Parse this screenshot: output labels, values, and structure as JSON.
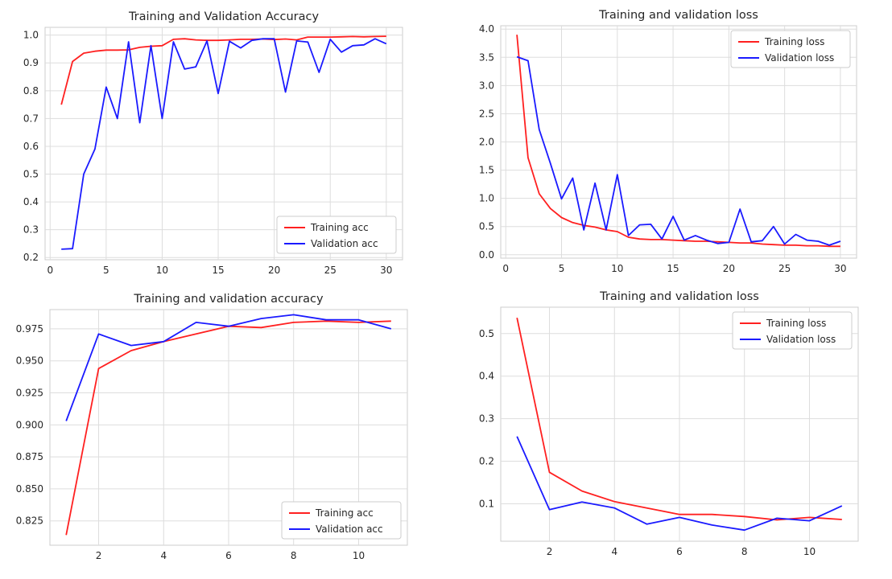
{
  "chart_data": [
    {
      "type": "line",
      "title": "Training and Validation Accuracy",
      "xlabel": "",
      "ylabel": "",
      "xlim": [
        -0.45,
        31.45
      ],
      "ylim": [
        0.192,
        1.028
      ],
      "xticks": [
        0,
        5,
        10,
        15,
        20,
        25,
        30
      ],
      "yticks": [
        0.2,
        0.3,
        0.4,
        0.5,
        0.6,
        0.7,
        0.8,
        0.9,
        1.0
      ],
      "ytick_labels": [
        "0.2",
        "0.3",
        "0.4",
        "0.5",
        "0.6",
        "0.7",
        "0.8",
        "0.9",
        "1.0"
      ],
      "grid": true,
      "legend_position": "lower-right",
      "x": [
        1,
        2,
        3,
        4,
        5,
        6,
        7,
        8,
        9,
        10,
        11,
        12,
        13,
        14,
        15,
        16,
        17,
        18,
        19,
        20,
        21,
        22,
        23,
        24,
        25,
        26,
        27,
        28,
        29,
        30
      ],
      "series": [
        {
          "name": "Training acc",
          "color": "#ff2020",
          "values": [
            0.75,
            0.905,
            0.935,
            0.942,
            0.946,
            0.946,
            0.947,
            0.956,
            0.96,
            0.962,
            0.985,
            0.987,
            0.983,
            0.981,
            0.981,
            0.983,
            0.985,
            0.985,
            0.986,
            0.984,
            0.986,
            0.983,
            0.993,
            0.993,
            0.993,
            0.994,
            0.995,
            0.994,
            0.995,
            0.996
          ]
        },
        {
          "name": "Validation acc",
          "color": "#1a1aff",
          "values": [
            0.23,
            0.232,
            0.5,
            0.59,
            0.813,
            0.7,
            0.976,
            0.685,
            0.962,
            0.7,
            0.976,
            0.878,
            0.886,
            0.979,
            0.79,
            0.978,
            0.954,
            0.981,
            0.987,
            0.987,
            0.795,
            0.979,
            0.975,
            0.866,
            0.985,
            0.939,
            0.962,
            0.965,
            0.987,
            0.969
          ]
        }
      ]
    },
    {
      "type": "line",
      "title": "Training and validation loss",
      "xlabel": "",
      "ylabel": "",
      "xlim": [
        -0.45,
        31.45
      ],
      "ylim": [
        -0.06,
        4.06
      ],
      "xticks": [
        0,
        5,
        10,
        15,
        20,
        25,
        30
      ],
      "yticks": [
        0.0,
        0.5,
        1.0,
        1.5,
        2.0,
        2.5,
        3.0,
        3.5,
        4.0
      ],
      "ytick_labels": [
        "0.0",
        "0.5",
        "1.0",
        "1.5",
        "2.0",
        "2.5",
        "3.0",
        "3.5",
        "4.0"
      ],
      "grid": true,
      "legend_position": "upper-right",
      "x": [
        1,
        2,
        3,
        4,
        5,
        6,
        7,
        8,
        9,
        10,
        11,
        12,
        13,
        14,
        15,
        16,
        17,
        18,
        19,
        20,
        21,
        22,
        23,
        24,
        25,
        26,
        27,
        28,
        29,
        30
      ],
      "series": [
        {
          "name": "Training loss",
          "color": "#ff2020",
          "values": [
            3.9,
            1.72,
            1.08,
            0.82,
            0.66,
            0.57,
            0.52,
            0.49,
            0.44,
            0.41,
            0.31,
            0.28,
            0.27,
            0.27,
            0.26,
            0.25,
            0.24,
            0.24,
            0.23,
            0.22,
            0.21,
            0.21,
            0.19,
            0.18,
            0.17,
            0.17,
            0.16,
            0.16,
            0.15,
            0.15
          ]
        },
        {
          "name": "Validation loss",
          "color": "#1a1aff",
          "values": [
            3.51,
            3.44,
            2.22,
            1.62,
            0.99,
            1.36,
            0.44,
            1.27,
            0.44,
            1.42,
            0.34,
            0.53,
            0.54,
            0.28,
            0.68,
            0.26,
            0.34,
            0.26,
            0.2,
            0.22,
            0.81,
            0.23,
            0.25,
            0.5,
            0.19,
            0.36,
            0.26,
            0.24,
            0.17,
            0.24
          ]
        }
      ]
    },
    {
      "type": "line",
      "title": "Training and validation accuracy",
      "xlabel": "",
      "ylabel": "",
      "xlim": [
        0.5,
        11.5
      ],
      "ylim": [
        0.806,
        0.99
      ],
      "xticks": [
        2,
        4,
        6,
        8,
        10
      ],
      "yticks": [
        0.825,
        0.85,
        0.875,
        0.9,
        0.925,
        0.95,
        0.975
      ],
      "ytick_labels": [
        "0.825",
        "0.850",
        "0.875",
        "0.900",
        "0.925",
        "0.950",
        "0.975"
      ],
      "grid": true,
      "legend_position": "lower-right",
      "x": [
        1,
        2,
        3,
        4,
        5,
        6,
        7,
        8,
        9,
        10,
        11
      ],
      "series": [
        {
          "name": "Training acc",
          "color": "#ff2020",
          "values": [
            0.814,
            0.944,
            0.958,
            0.965,
            0.971,
            0.977,
            0.976,
            0.98,
            0.981,
            0.98,
            0.981
          ]
        },
        {
          "name": "Validation acc",
          "color": "#1a1aff",
          "values": [
            0.903,
            0.971,
            0.962,
            0.965,
            0.98,
            0.977,
            0.983,
            0.986,
            0.982,
            0.982,
            0.975
          ]
        }
      ]
    },
    {
      "type": "line",
      "title": "Training and validation loss",
      "xlabel": "",
      "ylabel": "",
      "xlim": [
        0.5,
        11.5
      ],
      "ylim": [
        0.012,
        0.562
      ],
      "xticks": [
        2,
        4,
        6,
        8,
        10
      ],
      "yticks": [
        0.1,
        0.2,
        0.3,
        0.4,
        0.5
      ],
      "ytick_labels": [
        "0.1",
        "0.2",
        "0.3",
        "0.4",
        "0.5"
      ],
      "grid": true,
      "legend_position": "upper-right",
      "x": [
        1,
        2,
        3,
        4,
        5,
        6,
        7,
        8,
        9,
        10,
        11
      ],
      "series": [
        {
          "name": "Training loss",
          "color": "#ff2020",
          "values": [
            0.537,
            0.174,
            0.13,
            0.105,
            0.09,
            0.075,
            0.075,
            0.07,
            0.062,
            0.068,
            0.063
          ]
        },
        {
          "name": "Validation loss",
          "color": "#1a1aff",
          "values": [
            0.258,
            0.086,
            0.104,
            0.09,
            0.052,
            0.068,
            0.05,
            0.038,
            0.066,
            0.06,
            0.095
          ]
        }
      ]
    }
  ]
}
